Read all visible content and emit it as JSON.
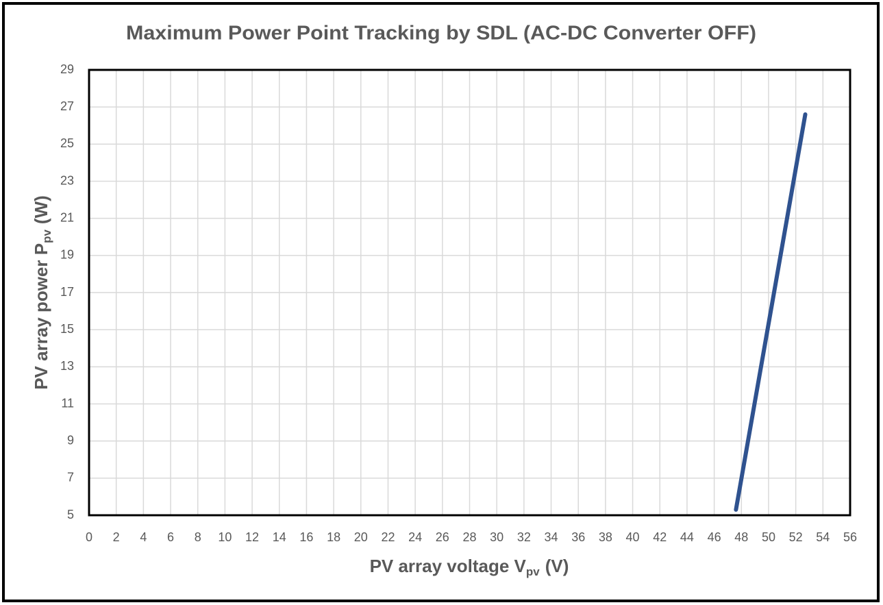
{
  "chart_data": {
    "type": "line",
    "title": "Maximum Power Point Tracking by SDL (AC-DC Converter OFF)",
    "xlabel": {
      "main": "PV array voltage V",
      "sub": "pv",
      "unit": "(V)"
    },
    "ylabel": {
      "main": "PV array power P",
      "sub": "pv",
      "unit": "(W)"
    },
    "x": [
      47.6,
      52.7
    ],
    "values": [
      5.3,
      26.6
    ],
    "color": "#2f528f",
    "xlim": [
      0,
      56
    ],
    "xticks": [
      0,
      2,
      4,
      6,
      8,
      10,
      12,
      14,
      16,
      18,
      20,
      22,
      24,
      26,
      28,
      30,
      32,
      34,
      36,
      38,
      40,
      42,
      44,
      46,
      48,
      50,
      52,
      54,
      56
    ],
    "ylim": [
      5,
      29
    ],
    "yticks": [
      5,
      7,
      9,
      11,
      13,
      15,
      17,
      19,
      21,
      23,
      25,
      27,
      29
    ],
    "grid": true
  }
}
